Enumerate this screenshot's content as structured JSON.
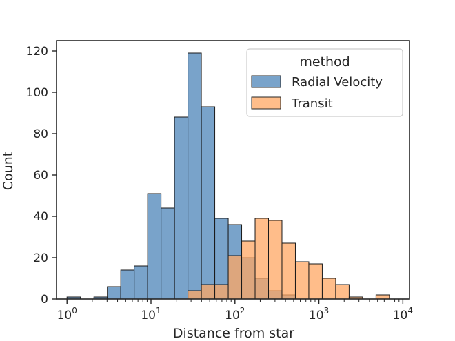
{
  "chart_data": {
    "type": "histogram",
    "xscale": "log",
    "xlabel": "Distance from star",
    "ylabel": "Count",
    "xlim": [
      0.75,
      12000
    ],
    "ylim": [
      0,
      125
    ],
    "xticks": [
      {
        "value": 1,
        "base": "10",
        "exp": "0"
      },
      {
        "value": 10,
        "base": "10",
        "exp": "1"
      },
      {
        "value": 100,
        "base": "10",
        "exp": "2"
      },
      {
        "value": 1000,
        "base": "10",
        "exp": "3"
      },
      {
        "value": 10000,
        "base": "10",
        "exp": "4"
      }
    ],
    "yticks": [
      "0",
      "20",
      "40",
      "60",
      "80",
      "100",
      "120"
    ],
    "grid": false,
    "legend": {
      "title": "method",
      "placement": "upper right"
    },
    "bins_log10_edges": [
      0.0,
      0.16,
      0.32,
      0.48,
      0.64,
      0.8,
      0.96,
      1.12,
      1.28,
      1.44,
      1.6,
      1.76,
      1.92,
      2.08,
      2.24,
      2.4,
      2.56,
      2.72,
      2.88,
      3.04,
      3.2,
      3.36,
      3.52,
      3.68,
      3.84,
      4.0
    ],
    "series": [
      {
        "name": "Radial Velocity",
        "color": "#4c84b8",
        "counts": [
          1,
          0,
          1,
          6,
          14,
          16,
          51,
          44,
          88,
          119,
          93,
          39,
          36,
          20,
          10,
          4,
          2,
          0,
          0,
          0,
          0,
          0,
          0,
          0,
          0
        ]
      },
      {
        "name": "Transit",
        "color": "#ffa763",
        "counts": [
          0,
          0,
          0,
          0,
          0,
          0,
          0,
          0,
          0,
          4,
          7,
          7,
          21,
          28,
          39,
          38,
          27,
          18,
          17,
          10,
          7,
          1,
          0,
          2,
          0
        ]
      }
    ]
  }
}
